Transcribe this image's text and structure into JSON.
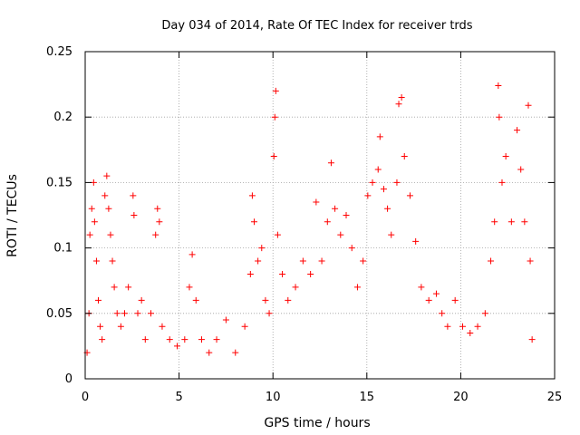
{
  "chart_data": {
    "type": "scatter",
    "title": "Day 034 of 2014, Rate Of TEC Index for receiver trds",
    "xlabel": "GPS time / hours",
    "ylabel": "ROTI / TECUs",
    "xlim": [
      0,
      25
    ],
    "ylim": [
      0,
      0.25
    ],
    "xticks": [
      0,
      5,
      10,
      15,
      20,
      25
    ],
    "yticks": [
      0,
      0.05,
      0.1,
      0.15,
      0.2,
      0.25
    ],
    "xtick_labels": [
      "0",
      "5",
      "10",
      "15",
      "20",
      "25"
    ],
    "ytick_labels": [
      "0",
      "0.05",
      "0.1",
      "0.15",
      "0.2",
      "0.25"
    ],
    "grid": true,
    "marker": "+",
    "color": "#ff0000",
    "series": [
      {
        "name": "ROTI",
        "points": [
          [
            0.1,
            0.02
          ],
          [
            0.2,
            0.05
          ],
          [
            0.25,
            0.11
          ],
          [
            0.35,
            0.13
          ],
          [
            0.45,
            0.15
          ],
          [
            0.5,
            0.12
          ],
          [
            0.6,
            0.09
          ],
          [
            0.7,
            0.06
          ],
          [
            0.8,
            0.04
          ],
          [
            0.9,
            0.03
          ],
          [
            1.05,
            0.14
          ],
          [
            1.15,
            0.155
          ],
          [
            1.25,
            0.13
          ],
          [
            1.35,
            0.11
          ],
          [
            1.45,
            0.09
          ],
          [
            1.55,
            0.07
          ],
          [
            1.7,
            0.05
          ],
          [
            1.9,
            0.04
          ],
          [
            2.1,
            0.05
          ],
          [
            2.3,
            0.07
          ],
          [
            2.55,
            0.14
          ],
          [
            2.6,
            0.125
          ],
          [
            2.8,
            0.05
          ],
          [
            3.0,
            0.06
          ],
          [
            3.2,
            0.03
          ],
          [
            3.5,
            0.05
          ],
          [
            3.75,
            0.11
          ],
          [
            3.85,
            0.13
          ],
          [
            3.95,
            0.12
          ],
          [
            4.1,
            0.04
          ],
          [
            4.5,
            0.03
          ],
          [
            4.9,
            0.025
          ],
          [
            5.3,
            0.03
          ],
          [
            5.55,
            0.07
          ],
          [
            5.7,
            0.095
          ],
          [
            5.9,
            0.06
          ],
          [
            6.2,
            0.03
          ],
          [
            6.6,
            0.02
          ],
          [
            7.0,
            0.03
          ],
          [
            7.5,
            0.045
          ],
          [
            8.0,
            0.02
          ],
          [
            8.5,
            0.04
          ],
          [
            8.8,
            0.08
          ],
          [
            8.9,
            0.14
          ],
          [
            9.0,
            0.12
          ],
          [
            9.2,
            0.09
          ],
          [
            9.4,
            0.1
          ],
          [
            9.6,
            0.06
          ],
          [
            9.8,
            0.05
          ],
          [
            10.05,
            0.17
          ],
          [
            10.1,
            0.2
          ],
          [
            10.15,
            0.22
          ],
          [
            10.25,
            0.11
          ],
          [
            10.5,
            0.08
          ],
          [
            10.8,
            0.06
          ],
          [
            11.2,
            0.07
          ],
          [
            11.6,
            0.09
          ],
          [
            12.0,
            0.08
          ],
          [
            12.3,
            0.135
          ],
          [
            12.6,
            0.09
          ],
          [
            12.9,
            0.12
          ],
          [
            13.1,
            0.165
          ],
          [
            13.3,
            0.13
          ],
          [
            13.6,
            0.11
          ],
          [
            13.9,
            0.125
          ],
          [
            14.2,
            0.1
          ],
          [
            14.5,
            0.07
          ],
          [
            14.8,
            0.09
          ],
          [
            15.05,
            0.14
          ],
          [
            15.3,
            0.15
          ],
          [
            15.6,
            0.16
          ],
          [
            15.7,
            0.185
          ],
          [
            15.9,
            0.145
          ],
          [
            16.1,
            0.13
          ],
          [
            16.3,
            0.11
          ],
          [
            16.6,
            0.15
          ],
          [
            16.7,
            0.21
          ],
          [
            16.85,
            0.215
          ],
          [
            17.0,
            0.17
          ],
          [
            17.3,
            0.14
          ],
          [
            17.6,
            0.105
          ],
          [
            17.9,
            0.07
          ],
          [
            18.3,
            0.06
          ],
          [
            18.7,
            0.065
          ],
          [
            19.0,
            0.05
          ],
          [
            19.3,
            0.04
          ],
          [
            19.7,
            0.06
          ],
          [
            20.1,
            0.04
          ],
          [
            20.5,
            0.035
          ],
          [
            20.9,
            0.04
          ],
          [
            21.3,
            0.05
          ],
          [
            21.6,
            0.09
          ],
          [
            21.8,
            0.12
          ],
          [
            22.0,
            0.224
          ],
          [
            22.05,
            0.2
          ],
          [
            22.2,
            0.15
          ],
          [
            22.4,
            0.17
          ],
          [
            22.7,
            0.12
          ],
          [
            23.0,
            0.19
          ],
          [
            23.2,
            0.16
          ],
          [
            23.4,
            0.12
          ],
          [
            23.6,
            0.209
          ],
          [
            23.7,
            0.09
          ],
          [
            23.8,
            0.03
          ]
        ]
      }
    ]
  }
}
